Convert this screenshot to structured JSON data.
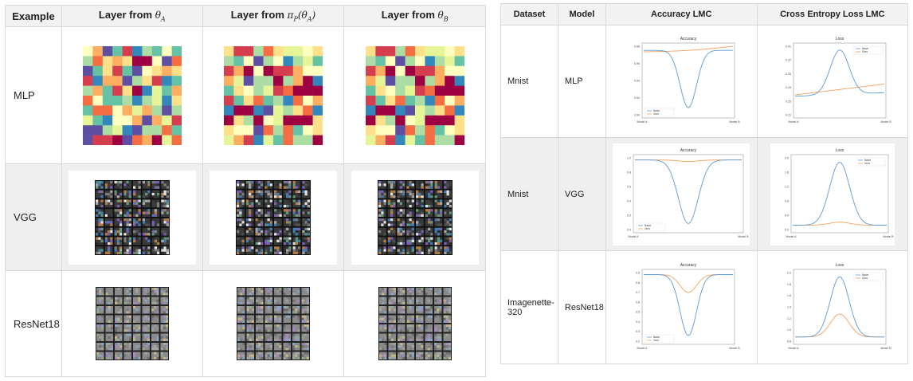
{
  "left_table": {
    "headers": {
      "example": "Example",
      "layer_a_prefix": "Layer from ",
      "layer_a_math": "θ_A",
      "layer_p_prefix": "Layer from ",
      "layer_p_math": "π_P(θ_A)",
      "layer_b_prefix": "Layer from ",
      "layer_b_math": "θ_B"
    },
    "rows": [
      {
        "label": "MLP"
      },
      {
        "label": "VGG"
      },
      {
        "label": "ResNet18"
      }
    ]
  },
  "right_table": {
    "headers": {
      "dataset": "Dataset",
      "model": "Model",
      "accuracy": "Accuracy LMC",
      "loss": "Cross Entropy Loss LMC"
    },
    "rows": [
      {
        "dataset": "Mnist",
        "model": "MLP"
      },
      {
        "dataset": "Mnist",
        "model": "VGG"
      },
      {
        "dataset": "Imagenette-320",
        "model": "ResNet18"
      }
    ]
  },
  "plots": {
    "accuracy_title": "Accuracy",
    "loss_title": "Loss",
    "legend_naive": "Naive",
    "legend_ours": "Ours",
    "x_left": "Model A",
    "x_right": "Model B",
    "acc_mlp_ticks": [
      "0.98",
      "0.96",
      "0.94",
      "0.92",
      "0.90"
    ],
    "loss_mlp_ticks": [
      "0.41",
      "0.37",
      "0.33",
      "0.29",
      "0.25",
      "0.21"
    ],
    "acc_vgg_ticks": [
      "1.0",
      "0.8",
      "0.6",
      "0.4",
      "0.2",
      "0.0"
    ],
    "loss_vgg_ticks": [
      "2.0",
      "1.6",
      "1.2",
      "0.8",
      "0.4",
      "0.0"
    ],
    "acc_res_ticks": [
      "0.9",
      "0.8",
      "0.7",
      "0.6",
      "0.5",
      "0.4",
      "0.3",
      "0.2"
    ],
    "loss_res_ticks": [
      "2.0",
      "1.8",
      "1.6",
      "1.4",
      "1.2",
      "1.0",
      "0.8"
    ]
  },
  "colors": {
    "naive": "#5b9bd5",
    "ours": "#f5a05a",
    "header_bg": "#f2f2f2"
  }
}
